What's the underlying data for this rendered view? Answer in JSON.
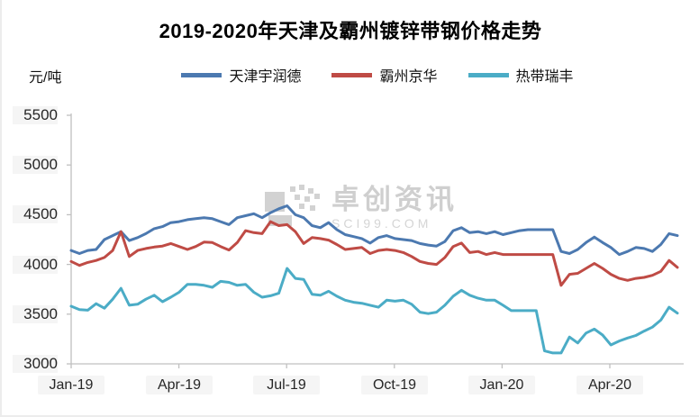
{
  "watermark": {
    "name": "卓创资讯",
    "domain": "SCI99.COM"
  },
  "chart_data": {
    "type": "line",
    "title": "2019-2020年天津及霸州镀锌带钢价格走势",
    "ylabel": "元/吨",
    "xlabel": "",
    "ylim": [
      3000,
      5500
    ],
    "grid": false,
    "legend_position": "top",
    "y_ticks": [
      "5500",
      "5000",
      "4500",
      "4000",
      "3500",
      "3000"
    ],
    "x_ticks": [
      "Jan-19",
      "Apr-19",
      "Jul-19",
      "Oct-19",
      "Jan-20",
      "Apr-20"
    ],
    "x_start": "Jan-19",
    "x_end": "May-20",
    "x_interval": "weekly",
    "series": [
      {
        "name": "天津宇润德",
        "color": "#4c79b0",
        "values": [
          4140,
          4110,
          4140,
          4150,
          4250,
          4290,
          4330,
          4240,
          4270,
          4310,
          4360,
          4380,
          4420,
          4430,
          4450,
          4460,
          4470,
          4460,
          4430,
          4400,
          4470,
          4490,
          4510,
          4470,
          4520,
          4560,
          4590,
          4500,
          4470,
          4390,
          4370,
          4420,
          4350,
          4300,
          4280,
          4260,
          4215,
          4270,
          4290,
          4260,
          4250,
          4240,
          4210,
          4195,
          4185,
          4230,
          4340,
          4370,
          4320,
          4330,
          4310,
          4330,
          4300,
          4320,
          4340,
          4350,
          4350,
          4350,
          4350,
          4130,
          4110,
          4150,
          4220,
          4275,
          4220,
          4170,
          4100,
          4130,
          4170,
          4160,
          4130,
          4200,
          4310,
          4290
        ]
      },
      {
        "name": "霸州京华",
        "color": "#bf4b45",
        "values": [
          4030,
          3990,
          4020,
          4040,
          4070,
          4140,
          4330,
          4080,
          4140,
          4160,
          4175,
          4185,
          4210,
          4180,
          4150,
          4180,
          4225,
          4220,
          4180,
          4145,
          4220,
          4340,
          4320,
          4310,
          4430,
          4390,
          4400,
          4330,
          4210,
          4270,
          4260,
          4245,
          4200,
          4150,
          4160,
          4170,
          4110,
          4140,
          4150,
          4140,
          4120,
          4080,
          4030,
          4010,
          4000,
          4070,
          4180,
          4215,
          4120,
          4130,
          4100,
          4120,
          4100,
          4100,
          4100,
          4100,
          4100,
          4100,
          4100,
          3790,
          3900,
          3910,
          3960,
          4010,
          3960,
          3900,
          3860,
          3840,
          3860,
          3870,
          3890,
          3930,
          4040,
          3970
        ]
      },
      {
        "name": "热带瑞丰",
        "color": "#4bacc6",
        "values": [
          3580,
          3545,
          3540,
          3605,
          3560,
          3650,
          3760,
          3590,
          3600,
          3650,
          3690,
          3625,
          3670,
          3720,
          3800,
          3800,
          3790,
          3770,
          3830,
          3820,
          3790,
          3800,
          3720,
          3670,
          3685,
          3710,
          3960,
          3860,
          3850,
          3700,
          3690,
          3730,
          3680,
          3640,
          3620,
          3610,
          3590,
          3570,
          3640,
          3630,
          3640,
          3600,
          3520,
          3505,
          3520,
          3590,
          3680,
          3740,
          3690,
          3660,
          3640,
          3640,
          3590,
          3535,
          3535,
          3535,
          3535,
          3130,
          3110,
          3110,
          3270,
          3210,
          3310,
          3350,
          3290,
          3190,
          3230,
          3260,
          3285,
          3330,
          3370,
          3440,
          3570,
          3510
        ]
      }
    ]
  }
}
